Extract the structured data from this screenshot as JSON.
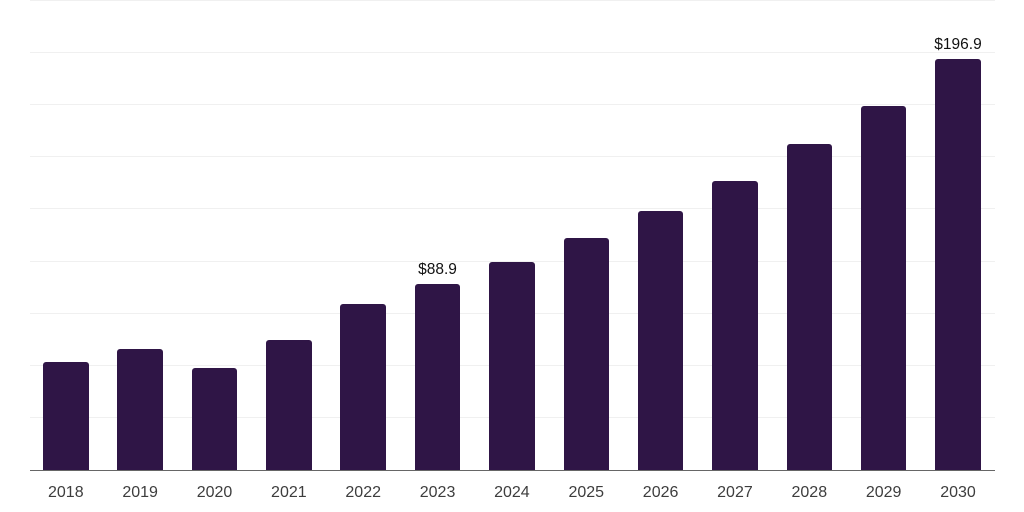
{
  "chart_data": {
    "type": "bar",
    "title": "",
    "xlabel": "",
    "ylabel": "",
    "categories": [
      "2018",
      "2019",
      "2020",
      "2021",
      "2022",
      "2023",
      "2024",
      "2025",
      "2026",
      "2027",
      "2028",
      "2029",
      "2030"
    ],
    "values": [
      51.9,
      57.9,
      49.0,
      62.2,
      79.5,
      88.9,
      99.7,
      110.9,
      123.8,
      138.4,
      155.9,
      174.4,
      196.9
    ],
    "data_labels": [
      "",
      "",
      "",
      "",
      "",
      "$88.9",
      "",
      "",
      "",
      "",
      "",
      "",
      "$196.9"
    ],
    "ylim": [
      0,
      225
    ],
    "gridline_step": 25,
    "grid": "horizontal-only",
    "legend": "none",
    "y_axis_tick_labels": "none",
    "colors": {
      "bar": "#2f1546",
      "gridline": "#f0f0f0",
      "axis_line": "#666666",
      "tick_label": "#3d3d3d",
      "data_label": "#111111",
      "background": "#ffffff"
    }
  }
}
